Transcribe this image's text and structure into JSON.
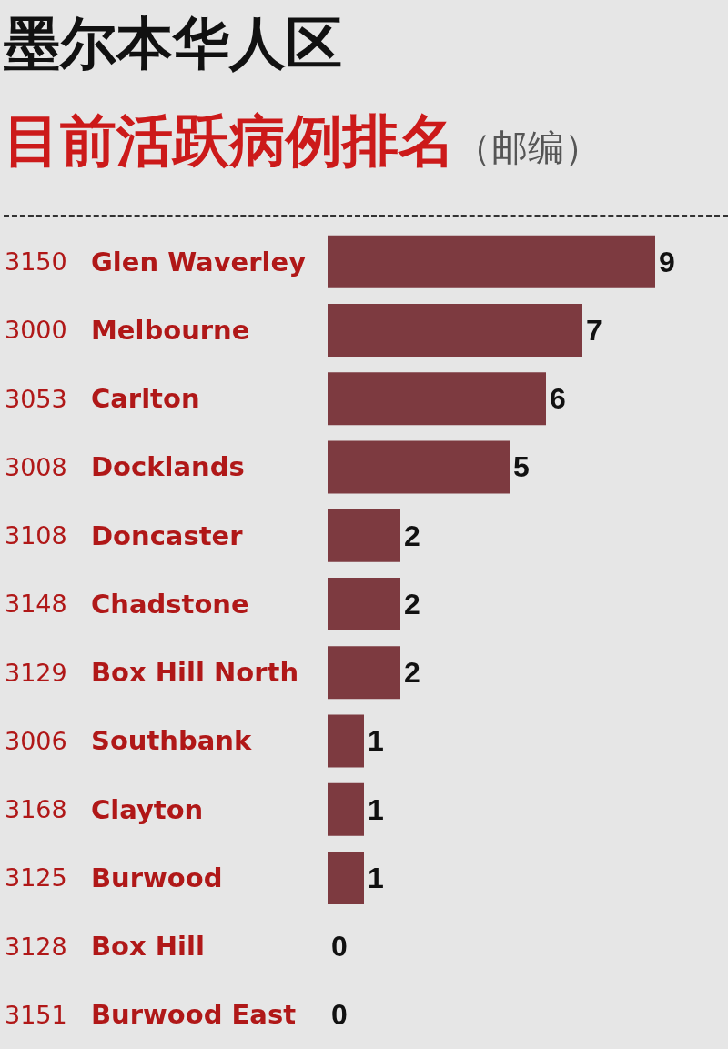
{
  "chart_data": {
    "type": "bar",
    "orientation": "horizontal",
    "title": "墨尔本华人区",
    "subtitle": "目前活跃病例排名",
    "annotations": [
      "（邮编）"
    ],
    "categories": [
      "3150 Glen Waverley",
      "3000 Melbourne",
      "3053 Carlton",
      "3008 Docklands",
      "3108 Doncaster",
      "3148 Chadstone",
      "3129 Box Hill North",
      "3006 Southbank",
      "3168 Clayton",
      "3125 Burwood",
      "3128 Box Hill",
      "3151 Burwood East"
    ],
    "values": [
      9,
      7,
      6,
      5,
      2,
      2,
      2,
      1,
      1,
      1,
      0,
      0
    ],
    "color": "#7d3a40",
    "data_labels": true
  }
}
